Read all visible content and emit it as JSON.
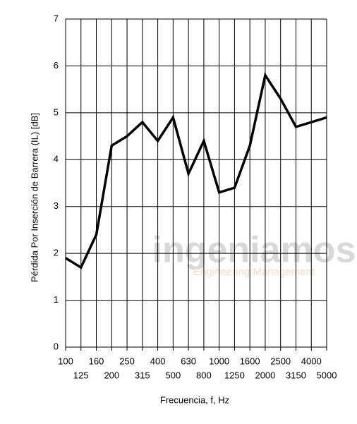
{
  "chart_data": {
    "type": "line",
    "x_label": "Frecuencia, f, Hz",
    "y_label": "Pérdida Por Inserción de Barrera (IL) [dB]",
    "categories": [
      "100",
      "125",
      "160",
      "200",
      "250",
      "315",
      "400",
      "500",
      "630",
      "800",
      "1000",
      "1250",
      "1600",
      "2000",
      "2500",
      "3150",
      "4000",
      "5000"
    ],
    "values": [
      1.9,
      1.7,
      2.4,
      4.3,
      4.5,
      4.8,
      4.4,
      4.9,
      3.7,
      4.4,
      3.3,
      3.4,
      4.3,
      5.8,
      5.3,
      4.7,
      4.8,
      4.9
    ],
    "color": "#000000",
    "ylim": [
      0,
      7
    ],
    "yticks": [
      0,
      1,
      2,
      3,
      4,
      5,
      6,
      7
    ],
    "grid": true,
    "watermark": {
      "name": "ingeniamos",
      "tagline": "Engineering Management"
    }
  }
}
